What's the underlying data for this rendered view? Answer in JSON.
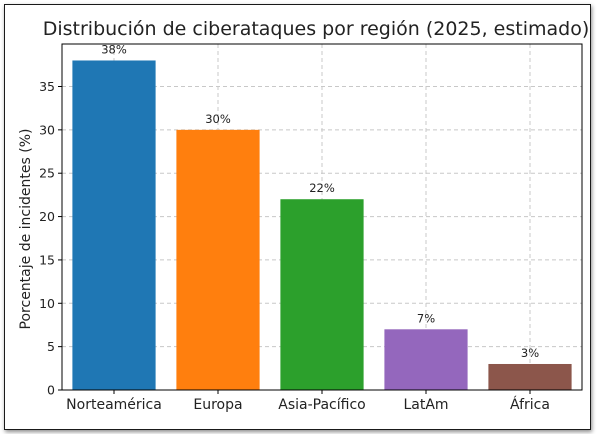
{
  "chart_data": {
    "type": "bar",
    "title": "Distribución de ciberataques por región (2025, estimado)",
    "xlabel": "",
    "ylabel": "Porcentaje de incidentes (%)",
    "categories": [
      "Norteamérica",
      "Europa",
      "Asia-Pacífico",
      "LatAm",
      "África"
    ],
    "values": [
      38,
      30,
      22,
      7,
      3
    ],
    "data_labels": [
      "38%",
      "30%",
      "22%",
      "7%",
      "3%"
    ],
    "colors": [
      "#1f77b4",
      "#ff7f0e",
      "#2ca02c",
      "#9467bd",
      "#8c564b"
    ],
    "ylim": [
      0,
      39.9
    ],
    "yticks": [
      0,
      5,
      10,
      15,
      20,
      25,
      30,
      35
    ],
    "grid": true
  }
}
